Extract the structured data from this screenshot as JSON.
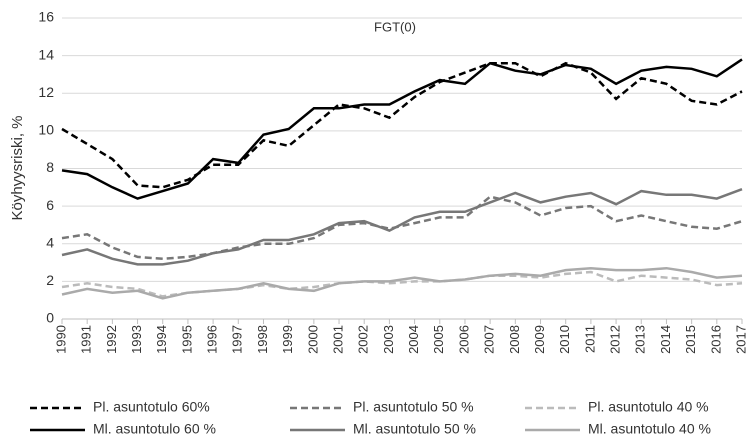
{
  "chart_data": {
    "type": "line",
    "title": "FGT(0)",
    "y_label": "Köyhyysriski, %",
    "categories": [
      "1990",
      "1991",
      "1992",
      "1993",
      "1994",
      "1995",
      "1996",
      "1997",
      "1998",
      "1999",
      "2000",
      "2001",
      "2002",
      "2003",
      "2004",
      "2005",
      "2006",
      "2007",
      "2008",
      "2009",
      "2010",
      "2011",
      "2012",
      "2013",
      "2014",
      "2015",
      "2016",
      "2017"
    ],
    "ylim": [
      0,
      16
    ],
    "yticks": [
      0,
      2,
      4,
      6,
      8,
      10,
      12,
      14,
      16
    ],
    "grid": true,
    "legend": "bottom",
    "series": [
      {
        "name": "Pl. asuntotulo 60%",
        "color": "#000000",
        "dashed": true,
        "values": [
          10.1,
          9.3,
          8.5,
          7.1,
          7.0,
          7.4,
          8.2,
          8.2,
          9.5,
          9.2,
          10.3,
          11.4,
          11.2,
          10.7,
          11.8,
          12.6,
          13.1,
          13.6,
          13.6,
          12.9,
          13.6,
          13.1,
          11.7,
          12.8,
          12.5,
          11.6,
          11.4,
          12.1
        ]
      },
      {
        "name": "Pl. asuntotulo 50 %",
        "color": "#777777",
        "dashed": true,
        "values": [
          4.3,
          4.5,
          3.8,
          3.3,
          3.2,
          3.3,
          3.5,
          3.8,
          4.0,
          4.0,
          4.3,
          5.0,
          5.1,
          4.8,
          5.1,
          5.4,
          5.4,
          6.5,
          6.2,
          5.5,
          5.9,
          6.0,
          5.2,
          5.5,
          5.2,
          4.9,
          4.8,
          5.2
        ]
      },
      {
        "name": "Pl. asuntotulo 40 %",
        "color": "#bbbbbb",
        "dashed": true,
        "values": [
          1.7,
          1.9,
          1.7,
          1.6,
          1.2,
          1.4,
          1.5,
          1.6,
          1.8,
          1.6,
          1.7,
          1.9,
          2.0,
          1.9,
          2.0,
          2.0,
          2.1,
          2.3,
          2.3,
          2.2,
          2.4,
          2.5,
          2.0,
          2.3,
          2.2,
          2.1,
          1.8,
          1.9
        ]
      },
      {
        "name": "Ml. asuntotulo 60 %",
        "color": "#000000",
        "dashed": false,
        "values": [
          7.9,
          7.7,
          7.0,
          6.4,
          6.8,
          7.2,
          8.5,
          8.3,
          9.8,
          10.1,
          11.2,
          11.2,
          11.4,
          11.4,
          12.1,
          12.7,
          12.5,
          13.6,
          13.2,
          13.0,
          13.5,
          13.3,
          12.5,
          13.2,
          13.4,
          13.3,
          12.9,
          13.8
        ]
      },
      {
        "name": "Ml. asuntotulo 50 %",
        "color": "#777777",
        "dashed": false,
        "values": [
          3.4,
          3.7,
          3.2,
          2.9,
          2.9,
          3.1,
          3.5,
          3.7,
          4.2,
          4.2,
          4.5,
          5.1,
          5.2,
          4.7,
          5.4,
          5.7,
          5.7,
          6.2,
          6.7,
          6.2,
          6.5,
          6.7,
          6.1,
          6.8,
          6.6,
          6.6,
          6.4,
          6.9
        ]
      },
      {
        "name": "Ml. asuntotulo 40 %",
        "color": "#aaaaaa",
        "dashed": false,
        "values": [
          1.3,
          1.6,
          1.4,
          1.5,
          1.1,
          1.4,
          1.5,
          1.6,
          1.9,
          1.6,
          1.5,
          1.9,
          2.0,
          2.0,
          2.2,
          2.0,
          2.1,
          2.3,
          2.4,
          2.3,
          2.6,
          2.7,
          2.6,
          2.6,
          2.7,
          2.5,
          2.2,
          2.3
        ]
      }
    ]
  }
}
